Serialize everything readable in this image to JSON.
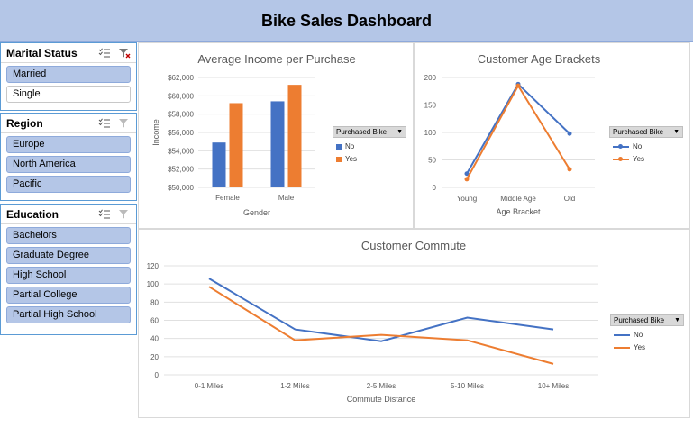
{
  "header": {
    "title": "Bike Sales Dashboard"
  },
  "slicers": [
    {
      "label": "Marital Status",
      "items": [
        {
          "label": "Married",
          "selected": true
        },
        {
          "label": "Single",
          "selected": false
        }
      ]
    },
    {
      "label": "Region",
      "items": [
        {
          "label": "Europe",
          "selected": true
        },
        {
          "label": "North America",
          "selected": true
        },
        {
          "label": "Pacific",
          "selected": true
        }
      ]
    },
    {
      "label": "Education",
      "items": [
        {
          "label": "Bachelors",
          "selected": true
        },
        {
          "label": "Graduate Degree",
          "selected": true
        },
        {
          "label": "High School",
          "selected": true
        },
        {
          "label": "Partial College",
          "selected": true
        },
        {
          "label": "Partial High School",
          "selected": true
        }
      ]
    }
  ],
  "colors": {
    "no": "#4472c4",
    "yes": "#ed7d31",
    "slicer_selected": "#b4c6e7",
    "header": "#b4c6e7"
  },
  "icons": {
    "multi_select": "multi-select-icon",
    "clear_filter": "clear-filter-icon"
  },
  "legend_title": "Purchased Bike",
  "chart_data": [
    {
      "type": "bar",
      "title": "Average Income per Purchase",
      "xlabel": "Gender",
      "ylabel": "Income",
      "categories": [
        "Female",
        "Male"
      ],
      "series": [
        {
          "name": "No",
          "values": [
            54900,
            59400
          ]
        },
        {
          "name": "Yes",
          "values": [
            59200,
            61200
          ]
        }
      ],
      "ylim": [
        50000,
        62000
      ],
      "yticks": [
        50000,
        52000,
        54000,
        56000,
        58000,
        60000,
        62000
      ],
      "ytick_labels": [
        "$50,000",
        "$52,000",
        "$54,000",
        "$56,000",
        "$58,000",
        "$60,000",
        "$62,000"
      ],
      "legend": "right"
    },
    {
      "type": "line",
      "title": "Customer Age Brackets",
      "xlabel": "Age Bracket",
      "ylabel": "",
      "categories": [
        "Young",
        "Middle Age",
        "Old"
      ],
      "series": [
        {
          "name": "No",
          "values": [
            25,
            188,
            98
          ]
        },
        {
          "name": "Yes",
          "values": [
            15,
            185,
            33
          ]
        }
      ],
      "ylim": [
        0,
        200
      ],
      "yticks": [
        0,
        50,
        100,
        150,
        200
      ],
      "legend": "right"
    },
    {
      "type": "line",
      "title": "Customer Commute",
      "xlabel": "Commute Distance",
      "ylabel": "",
      "categories": [
        "0-1 Miles",
        "1-2 Miles",
        "2-5 Miles",
        "5-10 Miles",
        "10+ Miles"
      ],
      "series": [
        {
          "name": "No",
          "values": [
            106,
            50,
            37,
            63,
            50
          ]
        },
        {
          "name": "Yes",
          "values": [
            97,
            38,
            44,
            38,
            12
          ]
        }
      ],
      "ylim": [
        0,
        120
      ],
      "yticks": [
        0,
        20,
        40,
        60,
        80,
        100,
        120
      ],
      "legend": "right"
    }
  ]
}
